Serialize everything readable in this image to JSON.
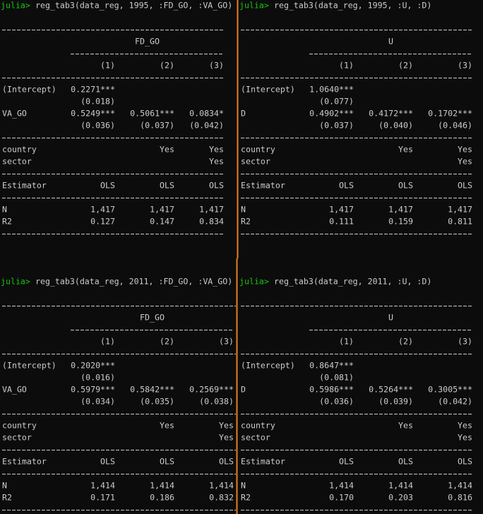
{
  "panels": [
    {
      "prompt": "julia>",
      "command": "reg_tab3(data_reg, 1995, :FD_GO, :VA_GO)",
      "dep_var": "FD_GO",
      "columns": [
        "(1)",
        "(2)",
        "(3)"
      ],
      "coefficients": [
        {
          "label": "(Intercept)",
          "estimates": [
            "0.2271***",
            null,
            null
          ],
          "std_errors": [
            "(0.018)",
            null,
            null
          ]
        },
        {
          "label": "VA_GO",
          "estimates": [
            "0.5249***",
            "0.5061***",
            "0.0834*"
          ],
          "std_errors": [
            "(0.036)",
            "(0.037)",
            "(0.042)"
          ]
        }
      ],
      "fixed_effects": [
        {
          "label": "country",
          "values": [
            null,
            "Yes",
            "Yes"
          ]
        },
        {
          "label": "sector",
          "values": [
            null,
            null,
            "Yes"
          ]
        }
      ],
      "estimator": {
        "label": "Estimator",
        "values": [
          "OLS",
          "OLS",
          "OLS"
        ]
      },
      "stats": [
        {
          "label": "N",
          "values": [
            "1,417",
            "1,417",
            "1,417"
          ]
        },
        {
          "label": "R2",
          "values": [
            "0.127",
            "0.147",
            "0.834"
          ]
        }
      ]
    },
    {
      "prompt": "julia>",
      "command": "reg_tab3(data_reg, 1995, :U, :D)",
      "dep_var": "U",
      "columns": [
        "(1)",
        "(2)",
        "(3)"
      ],
      "coefficients": [
        {
          "label": "(Intercept)",
          "estimates": [
            "1.0640***",
            null,
            null
          ],
          "std_errors": [
            "(0.077)",
            null,
            null
          ]
        },
        {
          "label": "D",
          "estimates": [
            "0.4902***",
            "0.4172***",
            "0.1702***"
          ],
          "std_errors": [
            "(0.037)",
            "(0.040)",
            "(0.046)"
          ]
        }
      ],
      "fixed_effects": [
        {
          "label": "country",
          "values": [
            null,
            "Yes",
            "Yes"
          ]
        },
        {
          "label": "sector",
          "values": [
            null,
            null,
            "Yes"
          ]
        }
      ],
      "estimator": {
        "label": "Estimator",
        "values": [
          "OLS",
          "OLS",
          "OLS"
        ]
      },
      "stats": [
        {
          "label": "N",
          "values": [
            "1,417",
            "1,417",
            "1,417"
          ]
        },
        {
          "label": "R2",
          "values": [
            "0.111",
            "0.159",
            "0.811"
          ]
        }
      ]
    },
    {
      "prompt": "julia>",
      "command": "reg_tab3(data_reg, 2011, :FD_GO, :VA_GO)",
      "dep_var": "FD_GO",
      "columns": [
        "(1)",
        "(2)",
        "(3)"
      ],
      "coefficients": [
        {
          "label": "(Intercept)",
          "estimates": [
            "0.2020***",
            null,
            null
          ],
          "std_errors": [
            "(0.016)",
            null,
            null
          ]
        },
        {
          "label": "VA_GO",
          "estimates": [
            "0.5979***",
            "0.5842***",
            "0.2569***"
          ],
          "std_errors": [
            "(0.034)",
            "(0.035)",
            "(0.038)"
          ]
        }
      ],
      "fixed_effects": [
        {
          "label": "country",
          "values": [
            null,
            "Yes",
            "Yes"
          ]
        },
        {
          "label": "sector",
          "values": [
            null,
            null,
            "Yes"
          ]
        }
      ],
      "estimator": {
        "label": "Estimator",
        "values": [
          "OLS",
          "OLS",
          "OLS"
        ]
      },
      "stats": [
        {
          "label": "N",
          "values": [
            "1,414",
            "1,414",
            "1,414"
          ]
        },
        {
          "label": "R2",
          "values": [
            "0.171",
            "0.186",
            "0.832"
          ]
        }
      ]
    },
    {
      "prompt": "julia>",
      "command": "reg_tab3(data_reg, 2011, :U, :D)",
      "dep_var": "U",
      "columns": [
        "(1)",
        "(2)",
        "(3)"
      ],
      "coefficients": [
        {
          "label": "(Intercept)",
          "estimates": [
            "0.8647***",
            null,
            null
          ],
          "std_errors": [
            "(0.081)",
            null,
            null
          ]
        },
        {
          "label": "D",
          "estimates": [
            "0.5986***",
            "0.5264***",
            "0.3005***"
          ],
          "std_errors": [
            "(0.036)",
            "(0.039)",
            "(0.042)"
          ]
        }
      ],
      "fixed_effects": [
        {
          "label": "country",
          "values": [
            null,
            "Yes",
            "Yes"
          ]
        },
        {
          "label": "sector",
          "values": [
            null,
            null,
            "Yes"
          ]
        }
      ],
      "estimator": {
        "label": "Estimator",
        "values": [
          "OLS",
          "OLS",
          "OLS"
        ]
      },
      "stats": [
        {
          "label": "N",
          "values": [
            "1,414",
            "1,414",
            "1,414"
          ]
        },
        {
          "label": "R2",
          "values": [
            "0.170",
            "0.203",
            "0.816"
          ]
        }
      ]
    }
  ]
}
